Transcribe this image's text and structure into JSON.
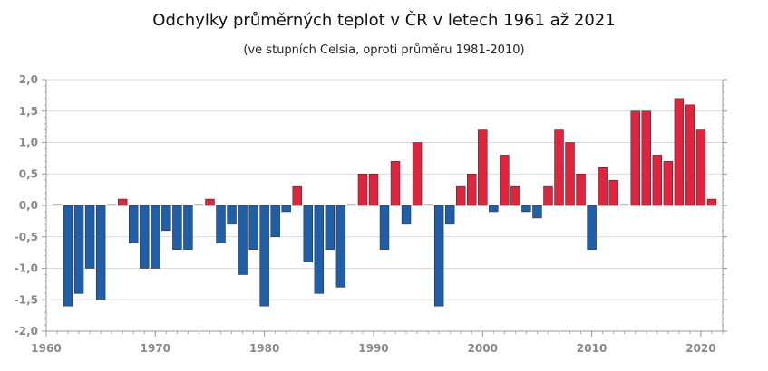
{
  "chart_data": {
    "type": "bar",
    "title": "Odchylky průměrných teplot v ČR v letech 1961 až 2021",
    "subtitle": "(ve stupních Celsia, oproti průměru 1981-2010)",
    "xlabel": "",
    "ylabel": "",
    "ylim": [
      -2.0,
      2.0
    ],
    "xlim": [
      1960,
      2022
    ],
    "grid": true,
    "y_ticks": [
      "2,0",
      "1,5",
      "1,0",
      "0,5",
      "0,0",
      "-0,5",
      "-1,0",
      "-1,5",
      "-2,0"
    ],
    "x_ticks": [
      "1960",
      "1970",
      "1980",
      "1990",
      "2000",
      "2010",
      "2020"
    ],
    "colors": {
      "positive": "#e3223c",
      "negative": "#1f5ea8",
      "zero": "#888888"
    },
    "years": [
      1961,
      1962,
      1963,
      1964,
      1965,
      1966,
      1967,
      1968,
      1969,
      1970,
      1971,
      1972,
      1973,
      1974,
      1975,
      1976,
      1977,
      1978,
      1979,
      1980,
      1981,
      1982,
      1983,
      1984,
      1985,
      1986,
      1987,
      1988,
      1989,
      1990,
      1991,
      1992,
      1993,
      1994,
      1995,
      1996,
      1997,
      1998,
      1999,
      2000,
      2001,
      2002,
      2003,
      2004,
      2005,
      2006,
      2007,
      2008,
      2009,
      2010,
      2011,
      2012,
      2013,
      2014,
      2015,
      2016,
      2017,
      2018,
      2019,
      2020,
      2021
    ],
    "values": [
      0.0,
      -1.6,
      -1.4,
      -1.0,
      -1.5,
      0.0,
      0.1,
      -0.6,
      -1.0,
      -1.0,
      -0.4,
      -0.7,
      -0.7,
      0.0,
      0.1,
      -0.6,
      -0.3,
      -1.1,
      -0.7,
      -1.6,
      -0.5,
      -0.1,
      0.3,
      -0.9,
      -1.4,
      -0.7,
      -1.3,
      0.0,
      0.5,
      0.5,
      -0.7,
      0.7,
      -0.3,
      1.0,
      0.0,
      -1.6,
      -0.3,
      0.3,
      0.5,
      1.2,
      -0.1,
      0.8,
      0.3,
      -0.1,
      -0.2,
      0.3,
      1.2,
      1.0,
      0.5,
      -0.7,
      0.6,
      0.4,
      0.0,
      1.5,
      1.5,
      0.8,
      0.7,
      1.7,
      1.6,
      1.2,
      0.1
    ]
  }
}
